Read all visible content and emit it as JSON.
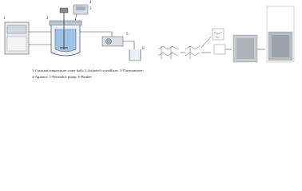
{
  "labels": [
    "1",
    "2",
    "3",
    "4",
    "5",
    "6"
  ],
  "caption": [
    "1-Constant temperature water bath; 2-Jacketed crystallizer; 3-Thermometer;",
    "4-Agitator; 5-Peristaltic pump; 6-Beaker"
  ]
}
